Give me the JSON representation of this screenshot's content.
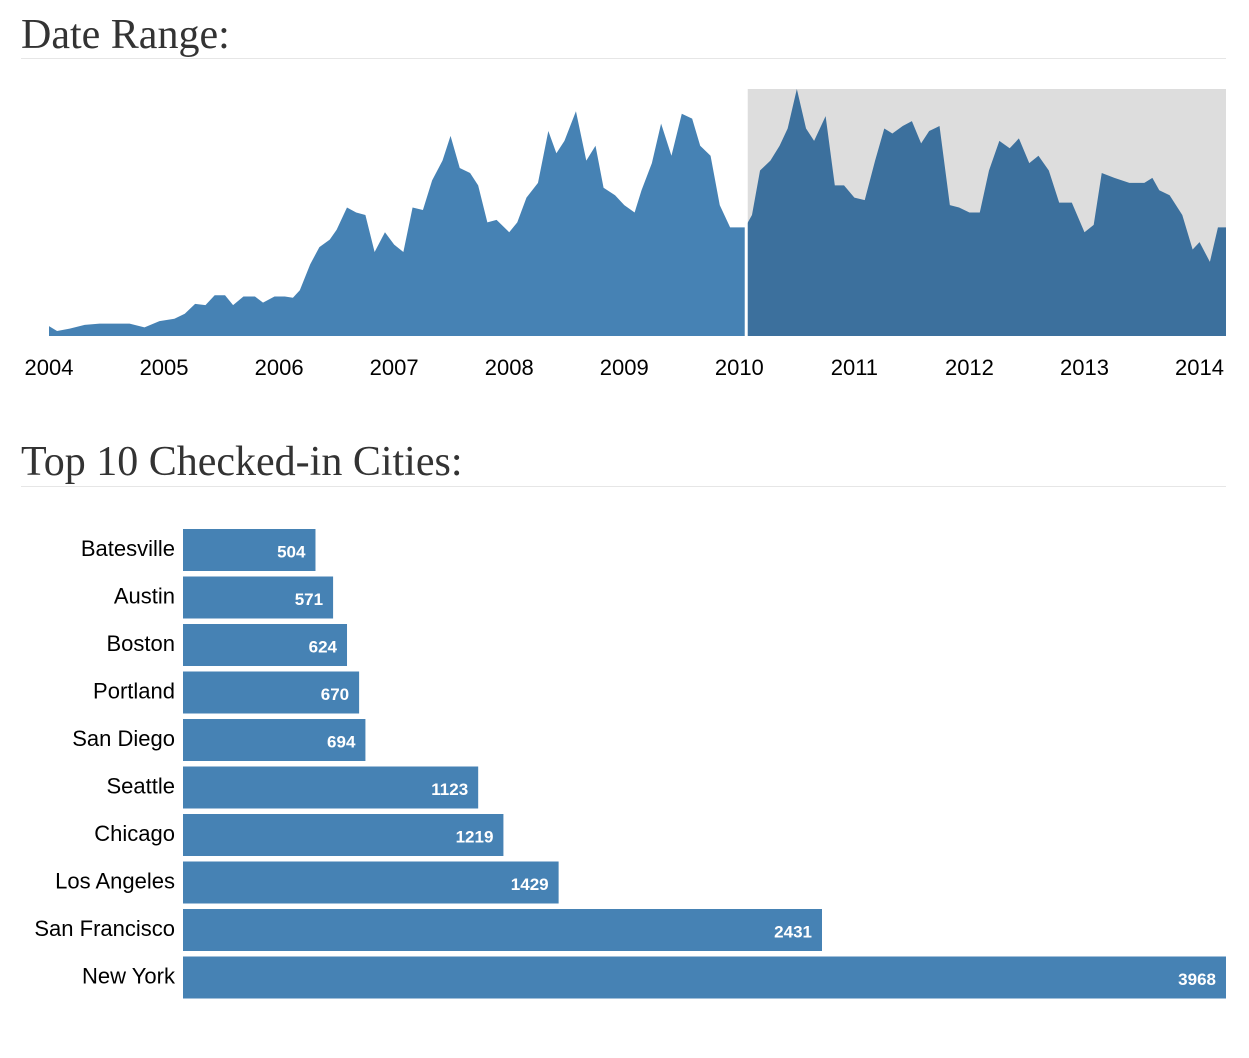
{
  "chart_data": [
    {
      "type": "area",
      "title": "Date Range:",
      "x": [
        2004.0,
        2004.07,
        2004.18,
        2004.31,
        2004.44,
        2004.57,
        2004.7,
        2004.83,
        2004.96,
        2005.09,
        2005.18,
        2005.27,
        2005.36,
        2005.44,
        2005.53,
        2005.6,
        2005.69,
        2005.79,
        2005.86,
        2005.96,
        2006.05,
        2006.12,
        2006.18,
        2006.27,
        2006.35,
        2006.44,
        2006.5,
        2006.59,
        2006.67,
        2006.75,
        2006.83,
        2006.92,
        2007.0,
        2007.08,
        2007.16,
        2007.25,
        2007.33,
        2007.42,
        2007.49,
        2007.57,
        2007.66,
        2007.73,
        2007.81,
        2007.89,
        2008.0,
        2008.07,
        2008.15,
        2008.25,
        2008.34,
        2008.41,
        2008.48,
        2008.58,
        2008.67,
        2008.75,
        2008.82,
        2008.92,
        2009.0,
        2009.09,
        2009.15,
        2009.24,
        2009.32,
        2009.41,
        2009.5,
        2009.59,
        2009.66,
        2009.75,
        2009.83,
        2009.92,
        2010.05,
        2010.11,
        2010.18,
        2010.27,
        2010.35,
        2010.42,
        2010.5,
        2010.58,
        2010.65,
        2010.75,
        2010.83,
        2010.91,
        2011.0,
        2011.09,
        2011.18,
        2011.26,
        2011.33,
        2011.42,
        2011.5,
        2011.58,
        2011.65,
        2011.74,
        2011.83,
        2011.91,
        2012.0,
        2012.09,
        2012.17,
        2012.26,
        2012.35,
        2012.43,
        2012.52,
        2012.6,
        2012.69,
        2012.78,
        2012.89,
        2013.0,
        2013.08,
        2013.15,
        2013.26,
        2013.39,
        2013.52,
        2013.59,
        2013.65,
        2013.74,
        2013.85,
        2013.94,
        2014.0,
        2014.09,
        2014.16,
        2014.23
      ],
      "values": [
        4,
        2,
        3,
        4.5,
        5,
        5,
        5,
        3.5,
        6,
        7,
        9,
        13,
        12.5,
        16.5,
        16.5,
        12.5,
        16,
        16,
        13.5,
        16,
        16,
        15.5,
        18.5,
        29,
        36,
        39,
        43,
        52,
        50,
        49,
        34,
        42,
        37,
        34,
        52,
        51,
        63,
        71,
        81,
        68,
        66,
        61,
        46,
        47,
        42,
        46,
        56,
        62,
        83,
        74,
        79,
        91,
        71,
        77,
        60,
        57,
        53,
        50,
        59,
        70,
        86,
        73,
        90,
        88,
        77,
        73,
        53,
        44,
        44,
        49,
        67,
        71,
        77,
        84,
        100,
        84,
        79,
        89,
        61,
        61,
        56,
        55,
        71,
        84,
        82,
        85,
        87,
        78,
        83,
        85,
        53,
        52,
        50,
        50,
        67,
        79,
        76,
        80,
        70,
        73,
        67,
        54,
        54,
        42,
        45,
        66,
        64,
        62,
        62,
        64,
        59,
        57,
        49,
        35,
        38,
        30,
        44,
        44
      ],
      "xlim": [
        2004,
        2014.23
      ],
      "ylim": [
        0,
        100
      ],
      "xticks": [
        2004,
        2005,
        2006,
        2007,
        2008,
        2009,
        2010,
        2011,
        2012,
        2013,
        2014
      ],
      "brush": [
        2010.06,
        2014.23
      ],
      "color": "#4682b4",
      "selected_color": "#3c709d",
      "brush_color": "#dddddd"
    },
    {
      "type": "hbar",
      "title": "Top 10 Checked-in Cities:",
      "categories": [
        "Batesville",
        "Austin",
        "Boston",
        "Portland",
        "San Diego",
        "Seattle",
        "Chicago",
        "Los Angeles",
        "San Francisco",
        "New York"
      ],
      "values": [
        504,
        571,
        624,
        670,
        694,
        1123,
        1219,
        1429,
        2431,
        3968
      ],
      "xlim": [
        0,
        3968
      ],
      "color": "#4682b4"
    }
  ]
}
